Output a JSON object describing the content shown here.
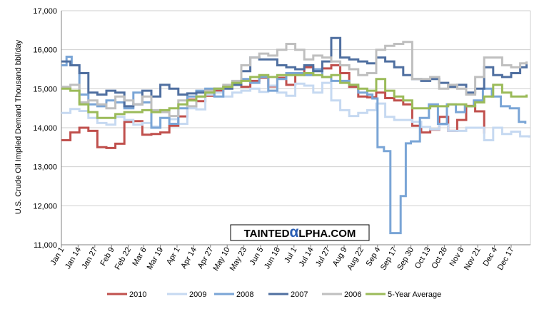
{
  "chart_data": {
    "type": "line",
    "title": "",
    "xlabel": "",
    "ylabel": "U.S. Crude Oil Implied Demand Thousand bbl/day",
    "ylim": [
      11000,
      17000
    ],
    "yticks": [
      "11,000",
      "12,000",
      "13,000",
      "14,000",
      "15,000",
      "16,000",
      "17,000"
    ],
    "ytick_values": [
      11000,
      12000,
      13000,
      14000,
      15000,
      16000,
      17000
    ],
    "grid": true,
    "legend_position": "bottom",
    "x_period_days": 365,
    "x_tick_labels": [
      "Jan 1",
      "Jan 14",
      "Jan 27",
      "Feb 9",
      "Feb 22",
      "Mar 6",
      "Mar 19",
      "Apr 1",
      "Apr 14",
      "Apr 27",
      "May 10",
      "May 23",
      "Jun 5",
      "Jun 18",
      "Jul 1",
      "Jul 14",
      "Jul 27",
      "Aug 9",
      "Aug 22",
      "Sep 4",
      "Sep 17",
      "Sep 30",
      "Oct 13",
      "Oct 26",
      "Nov 8",
      "Nov 21",
      "Dec 4",
      "Dec 17"
    ],
    "x_tick_days": [
      0,
      13,
      26,
      39,
      52,
      64,
      77,
      90,
      103,
      116,
      129,
      142,
      155,
      168,
      181,
      194,
      207,
      220,
      233,
      246,
      259,
      272,
      285,
      298,
      311,
      324,
      337,
      350
    ],
    "series": [
      {
        "name": "2010",
        "color": "#c0504d",
        "x": [
          0,
          7,
          14,
          21,
          28,
          35,
          42,
          49,
          56,
          63,
          70,
          77,
          84,
          91,
          98,
          105,
          112,
          119,
          126,
          133,
          140,
          147,
          154,
          161,
          168,
          175,
          182,
          189,
          196,
          203,
          210,
          217,
          224,
          231,
          238,
          245,
          252,
          259,
          266,
          273,
          280,
          287,
          294,
          301,
          308,
          315,
          322,
          329
        ],
        "y": [
          13680,
          13880,
          14000,
          13920,
          13500,
          13480,
          13590,
          14150,
          14170,
          13820,
          13840,
          13880,
          14050,
          14290,
          14720,
          14680,
          14820,
          14950,
          15050,
          15140,
          15050,
          15200,
          15280,
          15060,
          15280,
          15100,
          15400,
          15550,
          15480,
          15520,
          15600,
          15400,
          15050,
          14800,
          14780,
          14900,
          14760,
          14700,
          14600,
          14050,
          13880,
          13950,
          14280,
          13920,
          14200,
          14560,
          14420,
          13850
        ]
      },
      {
        "name": "2009",
        "color": "#c6d9f1",
        "x": [
          0,
          7,
          14,
          21,
          28,
          35,
          42,
          49,
          56,
          63,
          70,
          77,
          84,
          91,
          98,
          105,
          112,
          119,
          126,
          133,
          140,
          147,
          154,
          161,
          168,
          175,
          182,
          189,
          196,
          203,
          210,
          217,
          224,
          231,
          238,
          245,
          252,
          259,
          266,
          273,
          280,
          287,
          294,
          301,
          308,
          315,
          322,
          329,
          336,
          343,
          350,
          357,
          364
        ],
        "y": [
          14380,
          14480,
          14430,
          14250,
          14120,
          14080,
          14280,
          14200,
          14080,
          14120,
          14030,
          14250,
          14220,
          14100,
          14500,
          14470,
          14850,
          14900,
          14800,
          14900,
          14950,
          15000,
          14920,
          15080,
          14900,
          14820,
          15130,
          15080,
          14900,
          15150,
          14700,
          14450,
          14300,
          14380,
          14450,
          14620,
          14280,
          14200,
          14200,
          14150,
          14020,
          13960,
          14080,
          13920,
          13920,
          14000,
          14000,
          13680,
          14000,
          13840,
          13900,
          13780,
          13750
        ]
      },
      {
        "name": "2008",
        "color": "#7aa5d6",
        "x": [
          0,
          4,
          8,
          14,
          21,
          28,
          35,
          42,
          49,
          56,
          63,
          70,
          77,
          84,
          91,
          98,
          105,
          112,
          119,
          126,
          133,
          140,
          147,
          154,
          161,
          168,
          175,
          182,
          189,
          196,
          203,
          210,
          217,
          224,
          231,
          238,
          242,
          246,
          251,
          256,
          260,
          264,
          268,
          272,
          279,
          286,
          293,
          300,
          307,
          314,
          321,
          328,
          335,
          342,
          349,
          356,
          361
        ],
        "y": [
          15600,
          15820,
          15600,
          14850,
          14600,
          14550,
          14700,
          14650,
          14500,
          14900,
          14650,
          14000,
          14250,
          14100,
          14500,
          14800,
          14950,
          15000,
          14800,
          15050,
          15100,
          15250,
          15150,
          15300,
          14950,
          15250,
          15400,
          15400,
          15350,
          15500,
          15300,
          15200,
          15200,
          15100,
          14900,
          14850,
          14750,
          13500,
          13400,
          11300,
          11300,
          12250,
          13600,
          13650,
          14250,
          14600,
          14100,
          14600,
          14400,
          14550,
          14700,
          15000,
          14800,
          14550,
          14500,
          14150,
          14100
        ]
      },
      {
        "name": "2007",
        "color": "#4f6fa0",
        "x": [
          0,
          7,
          14,
          21,
          28,
          35,
          42,
          49,
          56,
          63,
          70,
          77,
          84,
          91,
          98,
          105,
          112,
          119,
          126,
          133,
          140,
          147,
          154,
          161,
          168,
          175,
          182,
          189,
          196,
          203,
          210,
          217,
          224,
          231,
          238,
          245,
          252,
          259,
          266,
          273,
          280,
          287,
          294,
          301,
          308,
          315,
          322,
          329,
          336,
          343,
          350,
          357,
          362
        ],
        "y": [
          15700,
          15600,
          15400,
          14900,
          14850,
          14950,
          14900,
          14550,
          14600,
          14950,
          14800,
          15100,
          15000,
          14850,
          14880,
          14900,
          14950,
          15000,
          15000,
          15100,
          15450,
          15800,
          15750,
          15750,
          15600,
          15550,
          15500,
          15600,
          15450,
          15700,
          16300,
          15800,
          15750,
          15700,
          15650,
          15800,
          15700,
          15550,
          15350,
          15250,
          15200,
          15250,
          15150,
          15050,
          15100,
          14900,
          15000,
          15550,
          15350,
          15300,
          15400,
          15550,
          15650
        ]
      },
      {
        "name": "2006",
        "color": "#bfbfbf",
        "x": [
          0,
          7,
          14,
          21,
          28,
          35,
          42,
          49,
          56,
          63,
          70,
          77,
          84,
          91,
          98,
          105,
          112,
          119,
          126,
          133,
          140,
          147,
          154,
          161,
          168,
          175,
          182,
          189,
          196,
          203,
          210,
          217,
          224,
          231,
          238,
          245,
          252,
          259,
          266,
          273,
          280,
          287,
          294,
          301,
          308,
          315,
          322,
          329,
          336,
          343,
          350,
          357,
          362
        ],
        "y": [
          15050,
          15100,
          14650,
          14700,
          14600,
          14500,
          14800,
          14700,
          14600,
          14800,
          14450,
          14400,
          14300,
          14700,
          14550,
          14800,
          14950,
          15000,
          15100,
          15200,
          15600,
          15800,
          15900,
          15850,
          16000,
          16150,
          16000,
          15750,
          15850,
          15800,
          15700,
          15600,
          15500,
          15350,
          15400,
          16000,
          16100,
          16150,
          16200,
          15250,
          15250,
          15300,
          15000,
          15100,
          15000,
          14850,
          15300,
          15800,
          15800,
          15600,
          15550,
          15650,
          15700
        ]
      },
      {
        "name": "5-Year Average",
        "color": "#9bbb59",
        "x": [
          0,
          7,
          14,
          21,
          28,
          35,
          42,
          49,
          56,
          63,
          70,
          77,
          84,
          91,
          98,
          105,
          112,
          119,
          126,
          133,
          140,
          147,
          154,
          161,
          168,
          175,
          182,
          189,
          196,
          203,
          210,
          217,
          224,
          231,
          238,
          245,
          252,
          259,
          266,
          273,
          280,
          287,
          294,
          301,
          308,
          315,
          322,
          329,
          336,
          343,
          350,
          357,
          362
        ],
        "y": [
          15000,
          14950,
          14600,
          14400,
          14250,
          14250,
          14350,
          14400,
          14400,
          14450,
          14400,
          14450,
          14500,
          14600,
          14700,
          14800,
          14900,
          15000,
          15050,
          15150,
          15200,
          15300,
          15350,
          15300,
          15350,
          15350,
          15350,
          15400,
          15350,
          15300,
          15350,
          15150,
          15100,
          15000,
          14950,
          15250,
          14950,
          14800,
          14700,
          14500,
          14500,
          14550,
          14550,
          14600,
          14600,
          14550,
          14650,
          14800,
          15100,
          14900,
          14800,
          14800,
          14850
        ]
      }
    ],
    "watermark": {
      "part1": "TAINTED",
      "mark": "α",
      "part2": "LPHA.COM"
    }
  },
  "colors": {
    "grid": "#cfcfcf",
    "axis": "#808080",
    "watermark_mark": "#2b5fb4"
  }
}
